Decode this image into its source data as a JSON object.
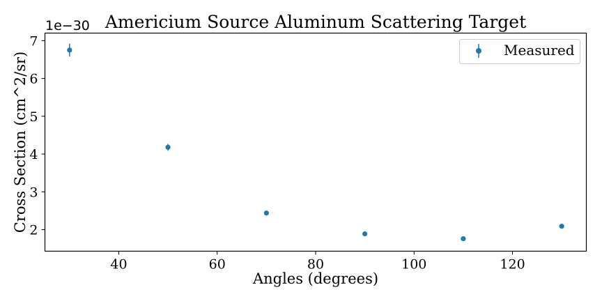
{
  "chart_data": {
    "type": "scatter",
    "title": "Americium Source Aluminum Scattering Target",
    "xlabel": "Angles (degrees)",
    "ylabel": "Cross Section (cm^2/sr)",
    "offset_text": "1e−30",
    "xlim": [
      25.0,
      135.0
    ],
    "ylim": [
      1.43,
      7.2
    ],
    "xticks": [
      40,
      60,
      80,
      100,
      120
    ],
    "yticks": [
      2,
      3,
      4,
      5,
      6,
      7
    ],
    "grid": false,
    "legend_position": "top-right",
    "series": [
      {
        "name": "Measured",
        "color": "#1f77b4",
        "marker": "circle",
        "error_bars": true,
        "x": [
          30,
          50,
          70,
          90,
          110,
          130
        ],
        "y": [
          6.75,
          4.18,
          2.44,
          1.89,
          1.76,
          2.09
        ],
        "yerr": [
          0.17,
          0.09,
          0.05,
          0.04,
          0.035,
          0.05
        ]
      }
    ]
  }
}
